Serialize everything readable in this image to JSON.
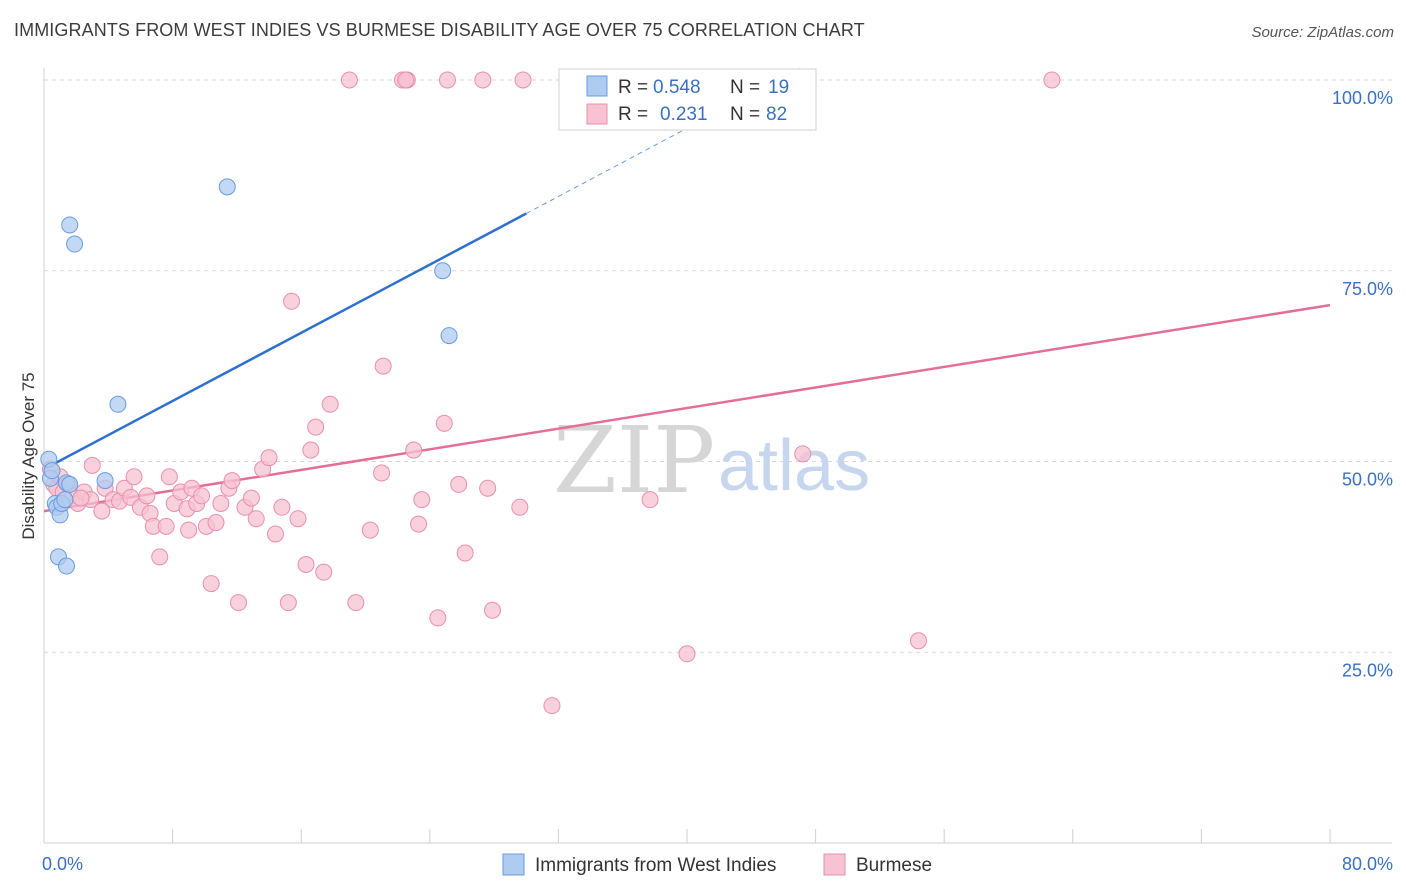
{
  "title": "IMMIGRANTS FROM WEST INDIES VS BURMESE DISABILITY AGE OVER 75 CORRELATION CHART",
  "source": "Source: ZipAtlas.com",
  "watermark": {
    "zip": "ZIP",
    "atlas": "atlas"
  },
  "colors": {
    "blue_fill": "#aecbf0",
    "blue_stroke": "#6a9be0",
    "blue_line": "#2f6fce",
    "pink_fill": "#f7c2d2",
    "pink_stroke": "#e98fad",
    "pink_line": "#e36f97",
    "tick_text": "#3a70c4",
    "grid": "#d8d8d8"
  },
  "legend": {
    "r_label": "R =",
    "n_label": "N =",
    "rows": [
      {
        "series": "Immigrants from West Indies",
        "r": "0.548",
        "n": "19"
      },
      {
        "series": "Burmese",
        "r": "0.231",
        "n": "82"
      }
    ]
  },
  "chart_data": {
    "type": "scatter",
    "title": "IMMIGRANTS FROM WEST INDIES VS BURMESE DISABILITY AGE OVER 75 CORRELATION CHART",
    "xlabel": "",
    "ylabel": "Disability Age Over 75",
    "xlim": [
      0,
      80
    ],
    "ylim": [
      0,
      100
    ],
    "x_tick_labels": [
      "0.0%",
      "80.0%"
    ],
    "y_ticks": [
      25,
      50,
      75,
      100
    ],
    "y_tick_labels": [
      "25.0%",
      "50.0%",
      "75.0%",
      "100.0%"
    ],
    "grid": true,
    "series": [
      {
        "name": "Immigrants from West Indies",
        "r": 0.548,
        "n": 19,
        "points": [
          [
            0.3,
            50.3
          ],
          [
            0.4,
            47.8
          ],
          [
            0.5,
            48.8
          ],
          [
            0.7,
            44.5
          ],
          [
            0.8,
            44.0
          ],
          [
            1.0,
            43.0
          ],
          [
            1.1,
            44.5
          ],
          [
            1.3,
            45.0
          ],
          [
            1.4,
            47.2
          ],
          [
            1.6,
            47.0
          ],
          [
            0.9,
            37.5
          ],
          [
            1.4,
            36.3
          ],
          [
            1.6,
            81.0
          ],
          [
            1.9,
            78.5
          ],
          [
            4.6,
            57.5
          ],
          [
            11.4,
            86.0
          ],
          [
            24.8,
            75.0
          ],
          [
            25.2,
            66.5
          ],
          [
            3.8,
            47.5
          ]
        ],
        "trend": {
          "x": [
            0,
            30.0
          ],
          "y": [
            49.0,
            82.5
          ]
        },
        "trend_dashed": {
          "x": [
            30.0,
            47.0
          ],
          "y": [
            82.5,
            101.5
          ]
        }
      },
      {
        "name": "Burmese",
        "r": 0.231,
        "n": 82,
        "points": [
          [
            0.4,
            49.0
          ],
          [
            0.6,
            47.0
          ],
          [
            0.8,
            46.5
          ],
          [
            1.0,
            48.0
          ],
          [
            1.2,
            46.0
          ],
          [
            1.5,
            47.0
          ],
          [
            1.8,
            45.5
          ],
          [
            2.1,
            44.5
          ],
          [
            2.5,
            46.0
          ],
          [
            2.9,
            45.0
          ],
          [
            3.0,
            49.5
          ],
          [
            3.6,
            43.5
          ],
          [
            3.8,
            46.5
          ],
          [
            4.3,
            45.0
          ],
          [
            4.7,
            44.8
          ],
          [
            5.0,
            46.5
          ],
          [
            5.4,
            45.3
          ],
          [
            5.6,
            48.0
          ],
          [
            6.0,
            44.0
          ],
          [
            6.4,
            45.5
          ],
          [
            6.6,
            43.2
          ],
          [
            6.8,
            41.5
          ],
          [
            7.2,
            37.5
          ],
          [
            7.6,
            41.5
          ],
          [
            7.8,
            48.0
          ],
          [
            8.1,
            44.5
          ],
          [
            8.5,
            46.0
          ],
          [
            8.9,
            43.8
          ],
          [
            9.2,
            46.5
          ],
          [
            9.5,
            44.5
          ],
          [
            9.8,
            45.5
          ],
          [
            10.1,
            41.5
          ],
          [
            10.4,
            34.0
          ],
          [
            10.7,
            42.0
          ],
          [
            11.0,
            44.5
          ],
          [
            11.5,
            46.5
          ],
          [
            11.7,
            47.5
          ],
          [
            12.1,
            31.5
          ],
          [
            12.5,
            44.0
          ],
          [
            13.2,
            42.5
          ],
          [
            13.6,
            49.0
          ],
          [
            14.0,
            50.5
          ],
          [
            14.4,
            40.5
          ],
          [
            14.8,
            44.0
          ],
          [
            15.2,
            31.5
          ],
          [
            15.4,
            71.0
          ],
          [
            15.8,
            42.5
          ],
          [
            16.3,
            36.5
          ],
          [
            16.6,
            51.5
          ],
          [
            16.9,
            54.5
          ],
          [
            17.4,
            35.5
          ],
          [
            17.8,
            57.5
          ],
          [
            19.0,
            100.0
          ],
          [
            19.4,
            31.5
          ],
          [
            20.3,
            41.0
          ],
          [
            21.0,
            48.5
          ],
          [
            21.1,
            62.5
          ],
          [
            22.3,
            100.0
          ],
          [
            22.6,
            100.0
          ],
          [
            23.0,
            51.5
          ],
          [
            23.3,
            41.8
          ],
          [
            23.5,
            45.0
          ],
          [
            24.5,
            29.5
          ],
          [
            24.9,
            55.0
          ],
          [
            25.1,
            100.0
          ],
          [
            25.8,
            47.0
          ],
          [
            26.2,
            38.0
          ],
          [
            27.3,
            100.0
          ],
          [
            27.6,
            46.5
          ],
          [
            27.9,
            30.5
          ],
          [
            29.6,
            44.0
          ],
          [
            29.8,
            100.0
          ],
          [
            37.7,
            45.0
          ],
          [
            40.0,
            24.8
          ],
          [
            47.2,
            51.0
          ],
          [
            54.4,
            26.5
          ],
          [
            62.7,
            100.0
          ],
          [
            31.6,
            18.0
          ],
          [
            22.5,
            100.0
          ],
          [
            12.9,
            45.2
          ],
          [
            9.0,
            41.0
          ],
          [
            2.3,
            45.2
          ]
        ],
        "trend": {
          "x": [
            0,
            80
          ],
          "y": [
            43.5,
            70.5
          ]
        }
      }
    ]
  }
}
